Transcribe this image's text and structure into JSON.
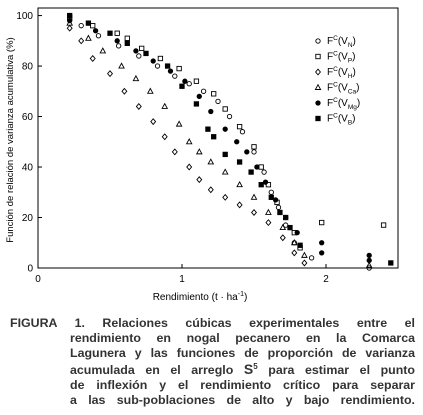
{
  "chart_data": {
    "type": "scatter",
    "y_label": "Función de relación de varianza acumulativa (%)",
    "x_label": [
      "Rendimiento (t · ha",
      "-1",
      ")"
    ],
    "xlim": [
      0,
      2.5
    ],
    "xticks": [
      0,
      1,
      2
    ],
    "ylim": [
      0,
      103
    ],
    "yticks": [
      0,
      20,
      40,
      60,
      80,
      100
    ],
    "series": [
      {
        "name": [
          "F",
          "C",
          "(V",
          "N",
          ")"
        ],
        "marker": "circle",
        "filled": false,
        "color": "#000000",
        "x": [
          0.22,
          0.3,
          0.42,
          0.56,
          0.7,
          0.83,
          0.95,
          1.05,
          1.15,
          1.25,
          1.33,
          1.42,
          1.5,
          1.57,
          1.62,
          1.67,
          1.72,
          1.78,
          1.9,
          2.3
        ],
        "values": [
          100,
          96,
          92,
          88,
          84,
          80,
          76,
          73,
          70,
          66,
          60,
          54,
          46,
          38,
          30,
          24,
          17,
          10,
          4,
          0
        ]
      },
      {
        "name": [
          "F",
          "C",
          "(V",
          "P",
          ")"
        ],
        "marker": "square",
        "filled": false,
        "color": "#000000",
        "x": [
          0.22,
          0.38,
          0.55,
          0.62,
          0.72,
          0.85,
          0.98,
          1.1,
          1.22,
          1.3,
          1.4,
          1.5,
          1.55,
          1.6,
          1.66,
          1.72,
          1.78,
          1.82,
          1.97,
          2.4
        ],
        "values": [
          99,
          96,
          93,
          91,
          87,
          83,
          79,
          74,
          69,
          63,
          56,
          48,
          40,
          33,
          26,
          20,
          14,
          8,
          18,
          17
        ]
      },
      {
        "name": [
          "F",
          "C",
          "(V",
          "H",
          ")"
        ],
        "marker": "diamond",
        "filled": false,
        "color": "#000000",
        "x": [
          0.22,
          0.3,
          0.38,
          0.5,
          0.6,
          0.7,
          0.8,
          0.88,
          0.95,
          1.05,
          1.12,
          1.2,
          1.3,
          1.4,
          1.5,
          1.6,
          1.7,
          1.78,
          1.85
        ],
        "values": [
          95,
          90,
          83,
          77,
          70,
          64,
          58,
          52,
          46,
          40,
          35,
          31,
          28,
          25,
          22,
          18,
          12,
          6,
          2
        ]
      },
      {
        "name": [
          "F",
          "C",
          "(V",
          "Ca",
          ")"
        ],
        "marker": "triangle",
        "filled": false,
        "color": "#000000",
        "x": [
          0.22,
          0.35,
          0.45,
          0.58,
          0.68,
          0.78,
          0.88,
          0.98,
          1.05,
          1.12,
          1.2,
          1.3,
          1.4,
          1.5,
          1.6,
          1.7,
          1.78,
          1.85,
          2.3
        ],
        "values": [
          97,
          91,
          86,
          80,
          75,
          70,
          64,
          57,
          50,
          46,
          42,
          38,
          33,
          28,
          22,
          16,
          10,
          5,
          1
        ]
      },
      {
        "name": [
          "F",
          "C",
          "(V",
          "Mg",
          ")"
        ],
        "marker": "circle",
        "filled": true,
        "color": "#000000",
        "x": [
          0.22,
          0.4,
          0.55,
          0.68,
          0.8,
          0.92,
          1.02,
          1.12,
          1.2,
          1.3,
          1.38,
          1.45,
          1.52,
          1.58,
          1.65,
          1.72,
          1.8,
          1.97,
          1.97,
          2.3,
          2.3
        ],
        "values": [
          98,
          94,
          90,
          86,
          82,
          78,
          74,
          68,
          62,
          55,
          50,
          46,
          40,
          34,
          27,
          20,
          14,
          10,
          6,
          5,
          3
        ]
      },
      {
        "name": [
          "F",
          "C",
          "(V",
          "B",
          ")"
        ],
        "marker": "square",
        "filled": true,
        "color": "#000000",
        "x": [
          0.22,
          0.35,
          0.5,
          0.62,
          0.75,
          0.9,
          1.0,
          1.1,
          1.18,
          1.22,
          1.3,
          1.4,
          1.48,
          1.55,
          1.62,
          1.68,
          1.75,
          1.82,
          2.45
        ],
        "values": [
          100,
          97,
          93,
          89,
          85,
          80,
          72,
          65,
          55,
          52,
          45,
          42,
          38,
          33,
          28,
          22,
          16,
          9,
          2
        ]
      }
    ]
  },
  "caption": {
    "lines": [
      "FIGURA 1. Relaciones cúbicas experimentales entre el",
      "rendimiento en nogal pecanero en la Comarca",
      "Lagunera y las funciones de proporción de varianza",
      [
        "acumulada en el arreglo ",
        "S",
        "5",
        " para estimar el punto"
      ],
      "de inflexión y el rendimiento crítico para separar",
      "a las sub-poblaciones de alto y bajo rendimiento."
    ]
  }
}
